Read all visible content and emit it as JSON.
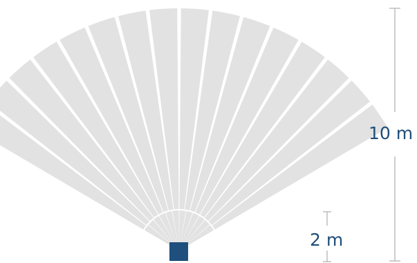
{
  "diagram": {
    "far_range_label": "10 m",
    "near_range_label": "2 m",
    "colors": {
      "fan": "#e2e2e2",
      "fan_separator": "#ffffff",
      "sensor": "#1e4f7d",
      "dimension_line": "#b3b3b3",
      "label": "#1f4e7a"
    },
    "far_zone_segments": 16,
    "near_zone_segments": 12
  }
}
